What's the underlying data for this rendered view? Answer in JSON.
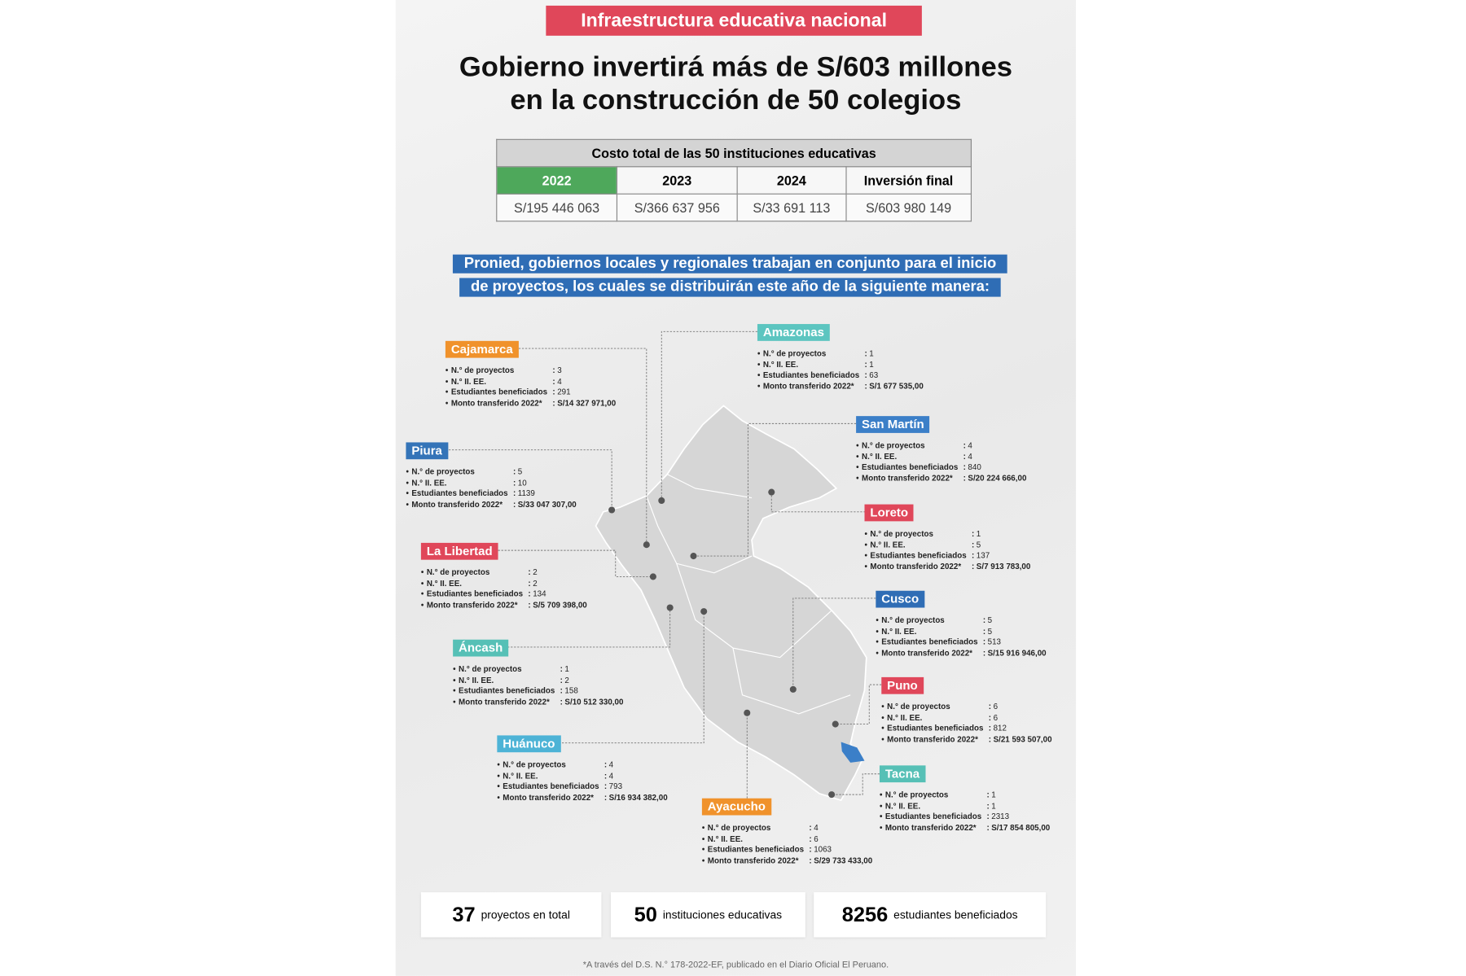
{
  "header": {
    "tag": "Infraestructura educativa nacional",
    "title_lines": [
      "Gobierno invertirá más de S/603 millones",
      "en la construcción de 50 colegios"
    ]
  },
  "table": {
    "caption": "Costo total de las 50 instituciones educativas",
    "columns": [
      "2022",
      "2023",
      "2024",
      "Inversión final"
    ],
    "values": [
      "S/195 446 063",
      "S/366 637 956",
      "S/33 691 113",
      "S/603 980 149"
    ]
  },
  "banner": [
    "Pronied, gobiernos locales y regionales trabajan en conjunto para el inicio",
    "de proyectos, los cuales se distribuirán este año de la siguiente manera:"
  ],
  "field_labels": [
    "N.° de proyectos",
    "N.° II. EE.",
    "Estudiantes beneficiados",
    "Monto transferido 2022*"
  ],
  "separator": ":",
  "regions": [
    {
      "name": "Cajamarca",
      "color": "#f0922b",
      "values": [
        3,
        4,
        291,
        "S/14 327 971,00"
      ]
    },
    {
      "name": "Amazonas",
      "color": "#5cc5c0",
      "values": [
        1,
        1,
        63,
        "S/1 677 535,00"
      ]
    },
    {
      "name": "San Martín",
      "color": "#3b7fc8",
      "values": [
        4,
        4,
        840,
        "S/20 224 666,00"
      ]
    },
    {
      "name": "Piura",
      "color": "#3474b8",
      "values": [
        5,
        10,
        1139,
        "S/33 047 307,00"
      ]
    },
    {
      "name": "Loreto",
      "color": "#e0475a",
      "values": [
        1,
        5,
        137,
        "S/7 913 783,00"
      ]
    },
    {
      "name": "La Libertad",
      "color": "#e0475a",
      "values": [
        2,
        2,
        134,
        "S/5 709 398,00"
      ]
    },
    {
      "name": "Cusco",
      "color": "#2f6db5",
      "values": [
        5,
        5,
        513,
        "S/15 916 946,00"
      ]
    },
    {
      "name": "Áncash",
      "color": "#56c0b6",
      "values": [
        1,
        2,
        158,
        "S/10 512 330,00"
      ]
    },
    {
      "name": "Puno",
      "color": "#e0475a",
      "values": [
        6,
        6,
        812,
        "S/21 593 507,00"
      ]
    },
    {
      "name": "Huánuco",
      "color": "#4db3d6",
      "values": [
        4,
        4,
        793,
        "S/16 934 382,00"
      ]
    },
    {
      "name": "Tacna",
      "color": "#56c0b6",
      "values": [
        1,
        1,
        2313,
        "S/17 854 805,00"
      ]
    },
    {
      "name": "Ayacucho",
      "color": "#f0922b",
      "values": [
        4,
        6,
        1063,
        "S/29 733 433,00"
      ]
    }
  ],
  "totals": [
    {
      "number": 37,
      "label": "proyectos en total"
    },
    {
      "number": 50,
      "label": "instituciones educativas"
    },
    {
      "number": 8256,
      "label": "estudiantes beneficiados"
    }
  ],
  "footnote": "*A través del D.S. N.° 178-2022-EF, publicado en el Diario Oficial El Peruano."
}
